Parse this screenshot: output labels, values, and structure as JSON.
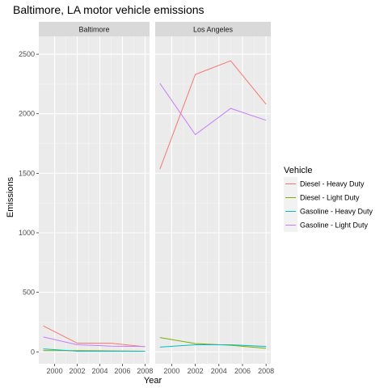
{
  "chart_data": {
    "type": "line",
    "title": "Baltimore, LA motor vehicle emissions",
    "xlabel": "Year",
    "ylabel": "Emissions",
    "x": [
      1999,
      2002,
      2005,
      2008
    ],
    "xticks": [
      2000,
      2002,
      2004,
      2006,
      2008
    ],
    "yticks": [
      0,
      500,
      1000,
      1500,
      2000,
      2500
    ],
    "xlim": [
      1998.6,
      2008.4
    ],
    "ylim": [
      -100,
      2650
    ],
    "grid": true,
    "legend": {
      "title": "Vehicle",
      "position": "right",
      "entries": [
        "Diesel - Heavy Duty",
        "Diesel - Light Duty",
        "Gasoline - Heavy Duty",
        "Gasoline - Light Duty"
      ]
    },
    "colors": {
      "Diesel - Heavy Duty": "#F8766D",
      "Diesel - Light Duty": "#7CAE00",
      "Gasoline - Heavy Duty": "#00BFC4",
      "Gasoline - Light Duty": "#C77CFF"
    },
    "panels": [
      {
        "name": "Baltimore",
        "series": [
          {
            "name": "Diesel - Heavy Duty",
            "values": [
              218,
              73,
              72,
              43
            ]
          },
          {
            "name": "Diesel - Light Duty",
            "values": [
              10,
              10,
              8,
              5
            ]
          },
          {
            "name": "Gasoline - Heavy Duty",
            "values": [
              25,
              5,
              5,
              5
            ]
          },
          {
            "name": "Gasoline - Light Duty",
            "values": [
              125,
              60,
              48,
              45
            ]
          }
        ]
      },
      {
        "name": "Los Angeles",
        "series": [
          {
            "name": "Diesel - Heavy Duty",
            "values": [
              1535,
              2330,
              2445,
              2080
            ]
          },
          {
            "name": "Diesel - Light Duty",
            "values": [
              120,
              70,
              55,
              30
            ]
          },
          {
            "name": "Gasoline - Heavy Duty",
            "values": [
              40,
              60,
              60,
              45
            ]
          },
          {
            "name": "Gasoline - Light Duty",
            "values": [
              2255,
              1825,
              2045,
              1945
            ]
          }
        ]
      }
    ]
  }
}
